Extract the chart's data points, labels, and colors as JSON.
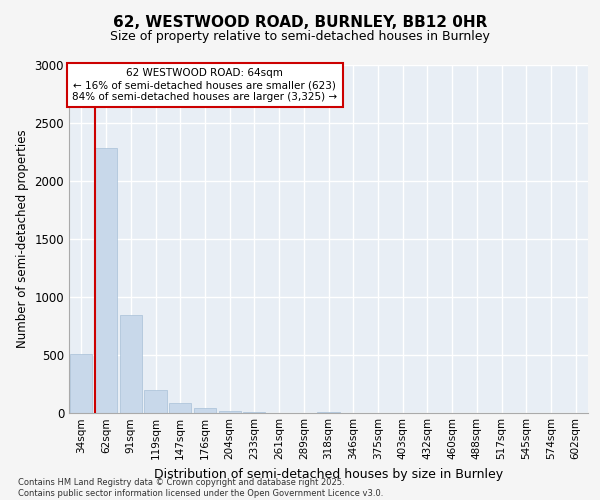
{
  "title_line1": "62, WESTWOOD ROAD, BURNLEY, BB12 0HR",
  "title_line2": "Size of property relative to semi-detached houses in Burnley",
  "xlabel": "Distribution of semi-detached houses by size in Burnley",
  "ylabel": "Number of semi-detached properties",
  "categories": [
    "34sqm",
    "62sqm",
    "91sqm",
    "119sqm",
    "147sqm",
    "176sqm",
    "204sqm",
    "233sqm",
    "261sqm",
    "289sqm",
    "318sqm",
    "346sqm",
    "375sqm",
    "403sqm",
    "432sqm",
    "460sqm",
    "488sqm",
    "517sqm",
    "545sqm",
    "574sqm",
    "602sqm"
  ],
  "values": [
    505,
    2280,
    845,
    190,
    80,
    38,
    10,
    2,
    0,
    0,
    5,
    0,
    0,
    0,
    0,
    0,
    0,
    0,
    0,
    0,
    0
  ],
  "bar_color": "#c8d8ea",
  "bar_edge_color": "#a8c0d8",
  "highlight_bar_index": 1,
  "highlight_line_color": "#cc0000",
  "annotation_box_color": "#ffffff",
  "annotation_border_color": "#cc0000",
  "annotation_text_line1": "62 WESTWOOD ROAD: 64sqm",
  "annotation_text_line2": "← 16% of semi-detached houses are smaller (623)",
  "annotation_text_line3": "84% of semi-detached houses are larger (3,325) →",
  "ylim": [
    0,
    3000
  ],
  "yticks": [
    0,
    500,
    1000,
    1500,
    2000,
    2500,
    3000
  ],
  "background_color": "#f5f5f5",
  "plot_bg_color": "#e8eef5",
  "grid_color": "#ffffff",
  "footer_line1": "Contains HM Land Registry data © Crown copyright and database right 2025.",
  "footer_line2": "Contains public sector information licensed under the Open Government Licence v3.0."
}
